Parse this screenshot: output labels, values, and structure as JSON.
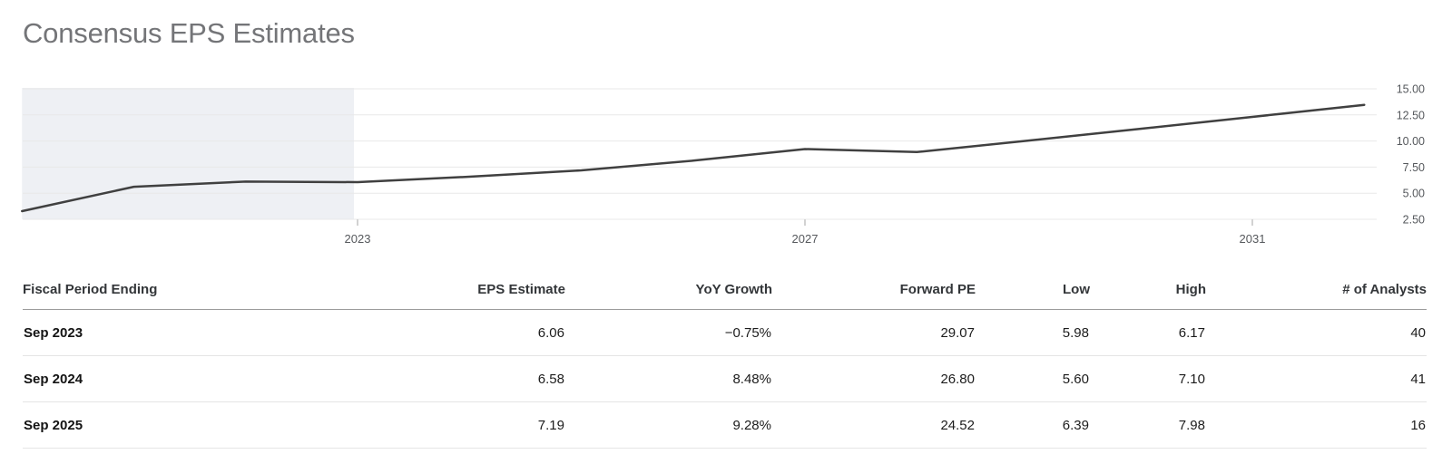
{
  "title": "Consensus EPS Estimates",
  "chart_data": {
    "type": "line",
    "title": "Consensus EPS Estimates",
    "x": [
      2020,
      2021,
      2022,
      2023,
      2024,
      2025,
      2026,
      2027,
      2028,
      2029,
      2030,
      2031,
      2032
    ],
    "series": [
      {
        "name": "Consensus EPS Estimate",
        "values": [
          3.28,
          5.62,
          6.11,
          6.06,
          6.58,
          7.19,
          8.12,
          9.23,
          8.94,
          10.04,
          11.17,
          12.31,
          13.46
        ]
      }
    ],
    "xlim": [
      2020,
      2033
    ],
    "ylim": [
      2.5,
      15
    ],
    "x_ticks": [
      2023,
      2027,
      2031
    ],
    "x_tick_labels": [
      "2023",
      "2027",
      "2031"
    ],
    "y_ticks": [
      2.5,
      5,
      7.5,
      10,
      12.5,
      15
    ],
    "y_tick_labels": [
      "2.50",
      "5.00",
      "7.50",
      "10.00",
      "12.50",
      "15.00"
    ],
    "grid": true,
    "legend": false,
    "y_axis_position": "right",
    "historical_region": {
      "from": 2020,
      "to": 2023
    },
    "colors": {
      "line": "#404040",
      "historical_shade": "#eef0f4",
      "gridline": "#e8e8e8",
      "tick_mark": "#d2d2d2",
      "axis_label": "#55585c"
    }
  },
  "table": {
    "columns": [
      {
        "key": "fiscal_period",
        "label": "Fiscal Period Ending",
        "align": "left"
      },
      {
        "key": "eps_estimate",
        "label": "EPS Estimate",
        "align": "right"
      },
      {
        "key": "yoy_growth",
        "label": "YoY Growth",
        "align": "right"
      },
      {
        "key": "forward_pe",
        "label": "Forward PE",
        "align": "right"
      },
      {
        "key": "low",
        "label": "Low",
        "align": "right"
      },
      {
        "key": "high",
        "label": "High",
        "align": "right"
      },
      {
        "key": "analysts",
        "label": "# of Analysts",
        "align": "right"
      }
    ],
    "rows": [
      {
        "fiscal_period": "Sep 2023",
        "eps_estimate": "6.06",
        "yoy_growth": "−0.75%",
        "forward_pe": "29.07",
        "low": "5.98",
        "high": "6.17",
        "analysts": "40"
      },
      {
        "fiscal_period": "Sep 2024",
        "eps_estimate": "6.58",
        "yoy_growth": "8.48%",
        "forward_pe": "26.80",
        "low": "5.60",
        "high": "7.10",
        "analysts": "41"
      },
      {
        "fiscal_period": "Sep 2025",
        "eps_estimate": "7.19",
        "yoy_growth": "9.28%",
        "forward_pe": "24.52",
        "low": "6.39",
        "high": "7.98",
        "analysts": "16"
      }
    ]
  }
}
